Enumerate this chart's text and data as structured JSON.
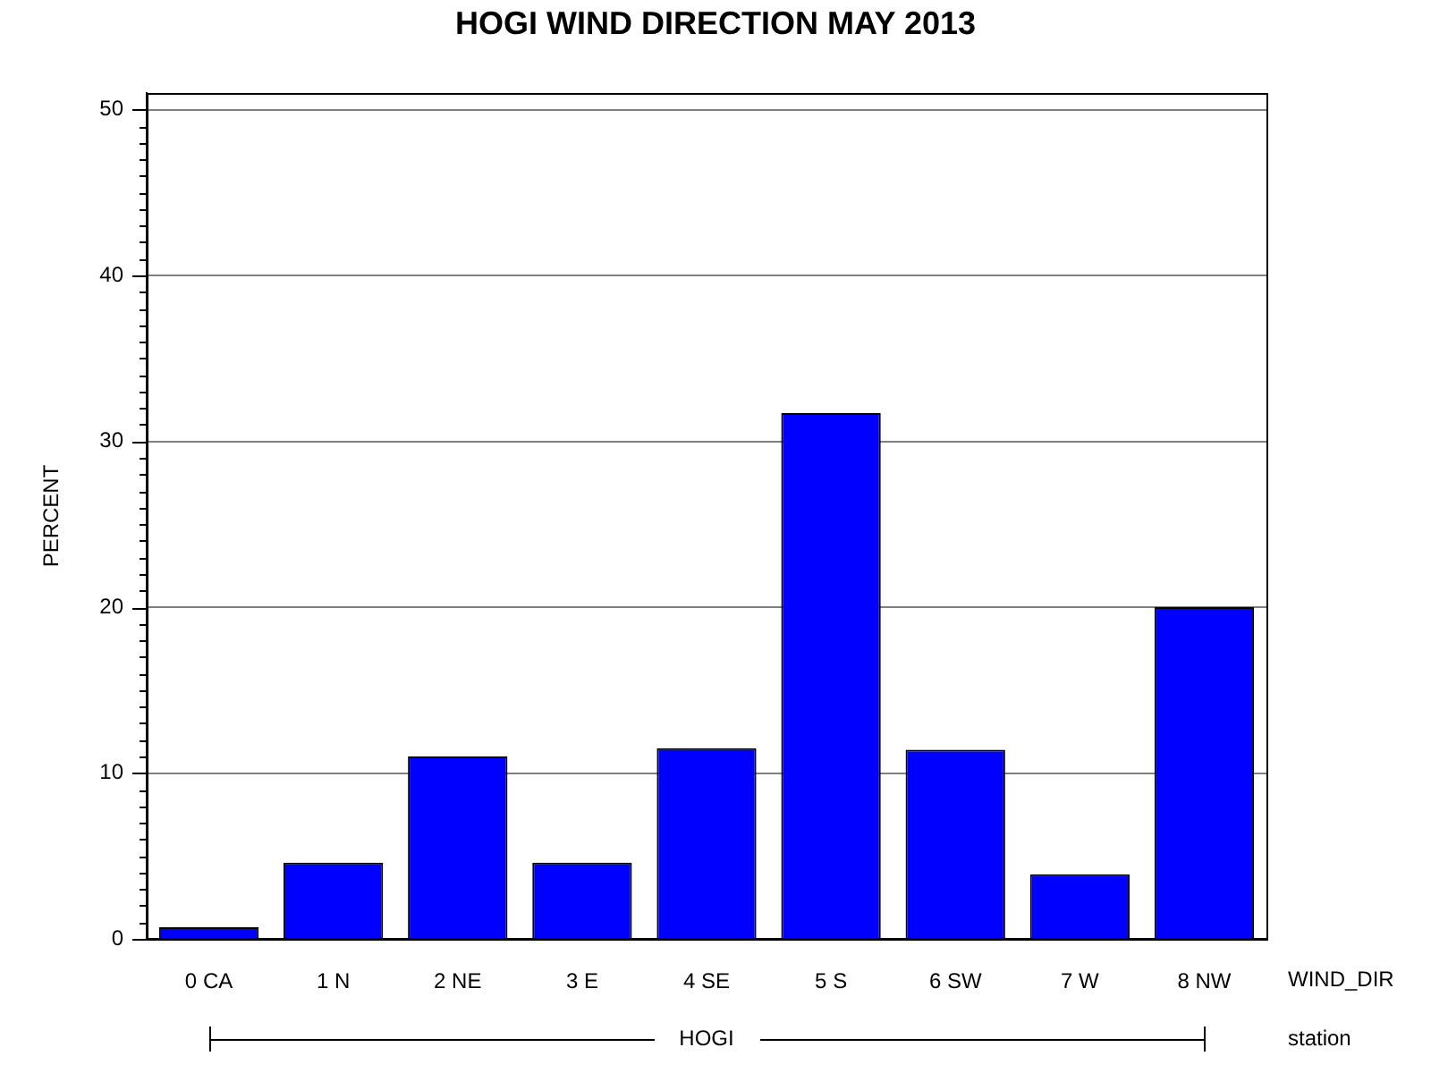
{
  "chart_data": {
    "type": "bar",
    "title": "HOGI WIND DIRECTION MAY 2013",
    "xlabel": "WIND_DIR",
    "ylabel": "PERCENT",
    "categories": [
      "0 CA",
      "1 N",
      "2 NE",
      "3 E",
      "4 SE",
      "5 S",
      "6 SW",
      "7 W",
      "8 NW"
    ],
    "values": [
      0.7,
      4.6,
      11.0,
      4.6,
      11.5,
      31.7,
      11.4,
      3.9,
      20.0
    ],
    "color": "#0000ff",
    "ylim": [
      0,
      51
    ],
    "yticks": [
      0,
      {
        "value": 1,
        "label": null
      },
      {
        "value": 2,
        "label": null
      },
      {
        "value": 3,
        "label": null
      },
      {
        "value": 4,
        "label": null
      },
      {
        "value": 5,
        "label": null
      },
      {
        "value": 6,
        "label": null
      },
      {
        "value": 7,
        "label": null
      },
      {
        "value": 8,
        "label": null
      },
      {
        "value": 9,
        "label": null
      },
      10,
      {
        "value": 11,
        "label": null
      },
      {
        "value": 12,
        "label": null
      },
      {
        "value": 13,
        "label": null
      },
      {
        "value": 14,
        "label": null
      },
      {
        "value": 15,
        "label": null
      },
      {
        "value": 16,
        "label": null
      },
      {
        "value": 17,
        "label": null
      },
      {
        "value": 18,
        "label": null
      },
      {
        "value": 19,
        "label": null
      },
      20,
      {
        "value": 21,
        "label": null
      },
      {
        "value": 22,
        "label": null
      },
      {
        "value": 23,
        "label": null
      },
      {
        "value": 24,
        "label": null
      },
      {
        "value": 25,
        "label": null
      },
      {
        "value": 26,
        "label": null
      },
      {
        "value": 27,
        "label": null
      },
      {
        "value": 28,
        "label": null
      },
      {
        "value": 29,
        "label": null
      },
      30,
      {
        "value": 31,
        "label": null
      },
      {
        "value": 32,
        "label": null
      },
      {
        "value": 33,
        "label": null
      },
      {
        "value": 34,
        "label": null
      },
      {
        "value": 35,
        "label": null
      },
      {
        "value": 36,
        "label": null
      },
      {
        "value": 37,
        "label": null
      },
      {
        "value": 38,
        "label": null
      },
      {
        "value": 39,
        "label": null
      },
      40,
      {
        "value": 41,
        "label": null
      },
      {
        "value": 42,
        "label": null
      },
      {
        "value": 43,
        "label": null
      },
      {
        "value": 44,
        "label": null
      },
      {
        "value": 45,
        "label": null
      },
      {
        "value": 46,
        "label": null
      },
      {
        "value": 47,
        "label": null
      },
      {
        "value": 48,
        "label": null
      },
      {
        "value": 49,
        "label": null
      },
      50
    ],
    "grid": "y",
    "annotations": [
      "HOGI",
      "station"
    ]
  }
}
